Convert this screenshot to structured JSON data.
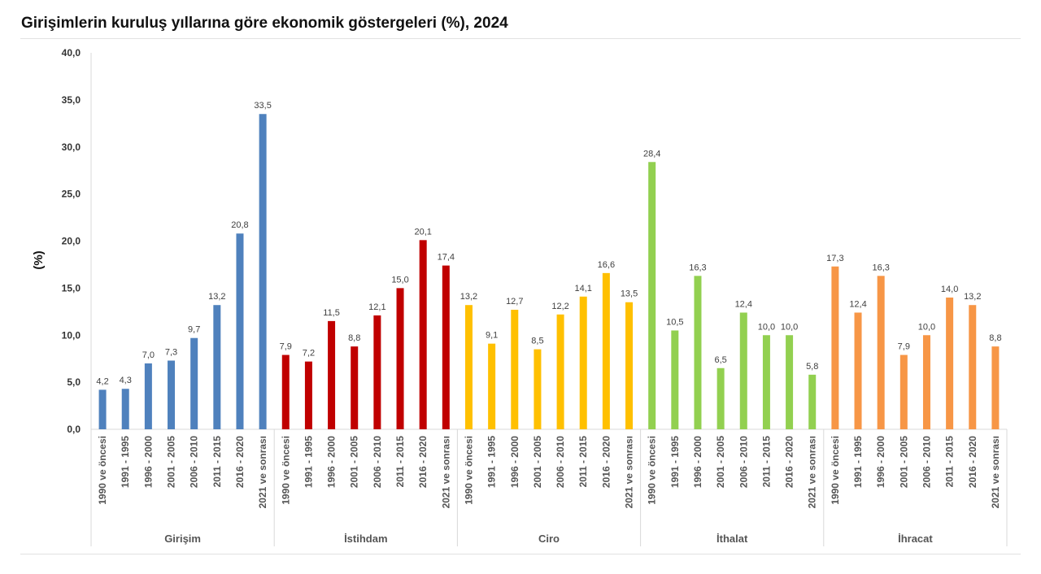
{
  "chart_data": {
    "type": "bar",
    "title": "Girişimlerin kuruluş yıllarına göre ekonomik göstergeleri (%), 2024",
    "ylabel": "(%)",
    "xlabel": "",
    "ylim": [
      0,
      40
    ],
    "yticks": [
      "0,0",
      "5,0",
      "10,0",
      "15,0",
      "20,0",
      "25,0",
      "30,0",
      "35,0",
      "40,0"
    ],
    "grid": false,
    "categories": [
      "1990 ve öncesi",
      "1991 - 1995",
      "1996 - 2000",
      "2001 - 2005",
      "2006 - 2010",
      "2011 - 2015",
      "2016 - 2020",
      "2021 ve sonrası"
    ],
    "series": [
      {
        "name": "Girişim",
        "color": "#4f81bd",
        "values": [
          4.2,
          4.3,
          7.0,
          7.3,
          9.7,
          13.2,
          20.8,
          33.5
        ]
      },
      {
        "name": "İstihdam",
        "color": "#c00000",
        "values": [
          7.9,
          7.2,
          11.5,
          8.8,
          12.1,
          15.0,
          20.1,
          17.4
        ]
      },
      {
        "name": "Ciro",
        "color": "#ffc000",
        "values": [
          13.2,
          9.1,
          12.7,
          8.5,
          12.2,
          14.1,
          16.6,
          13.5
        ]
      },
      {
        "name": "İthalat",
        "color": "#92d050",
        "values": [
          28.4,
          10.5,
          16.3,
          6.5,
          12.4,
          10.0,
          10.0,
          5.8
        ]
      },
      {
        "name": "İhracat",
        "color": "#f79646",
        "values": [
          17.3,
          12.4,
          16.3,
          7.9,
          10.0,
          14.0,
          13.2,
          8.8
        ]
      }
    ]
  }
}
